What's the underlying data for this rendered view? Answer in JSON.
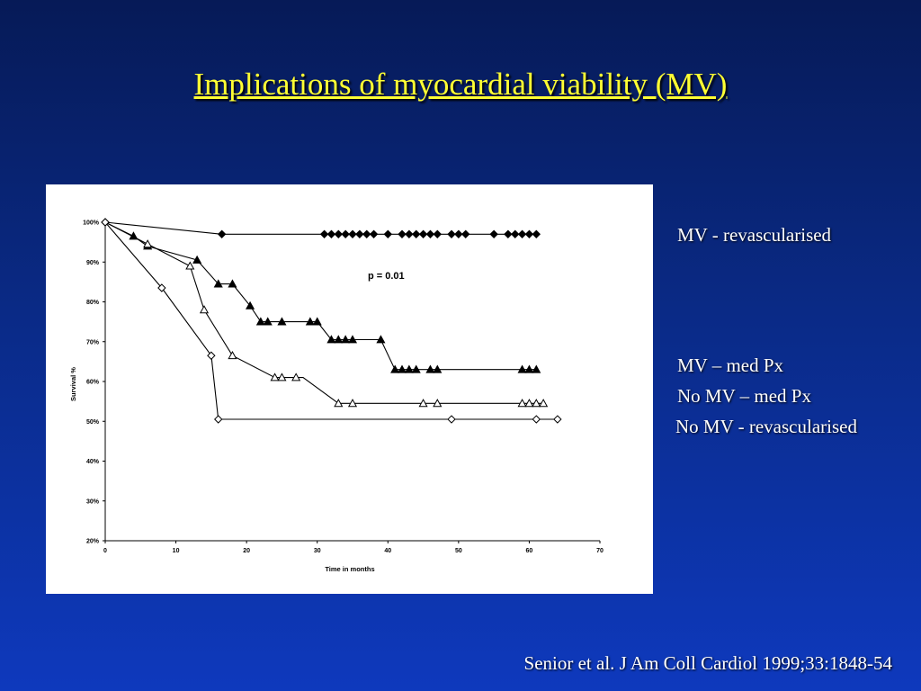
{
  "slide": {
    "title": "Implications of  myocardial viability (MV)",
    "citation": "Senior et al. J Am Coll Cardiol 1999;33:1848-54"
  },
  "labels": {
    "mv_revasc": "MV - revascularised",
    "mv_med": "MV – med Px",
    "nomv_med": "No MV – med Px",
    "nomv_revasc": "No MV - revascularised"
  },
  "colors": {
    "title": "#ffff33",
    "text": "#ffffff",
    "chart_bg": "#ffffff",
    "series": "#000000"
  },
  "chart_data": {
    "type": "line",
    "xlabel": "Time in months",
    "ylabel": "Survival %",
    "xlim": [
      0,
      70
    ],
    "ylim": [
      20,
      100
    ],
    "x_ticks": [
      "0",
      "10",
      "20",
      "30",
      "40",
      "50",
      "60",
      "70"
    ],
    "y_ticks": [
      "20%",
      "30%",
      "40%",
      "50%",
      "60%",
      "70%",
      "80%",
      "90%",
      "100%"
    ],
    "annotation": "p = 0.01",
    "series": [
      {
        "name": "MV - revascularised",
        "marker": "diamond-filled",
        "steps": [
          [
            0,
            100
          ],
          [
            16.5,
            97
          ],
          [
            61,
            97
          ]
        ],
        "markers": [
          [
            0,
            100
          ],
          [
            16.5,
            97
          ],
          [
            31,
            97
          ],
          [
            32,
            97
          ],
          [
            33,
            97
          ],
          [
            34,
            97
          ],
          [
            35,
            97
          ],
          [
            36,
            97
          ],
          [
            37,
            97
          ],
          [
            38,
            97
          ],
          [
            40,
            97
          ],
          [
            42,
            97
          ],
          [
            43,
            97
          ],
          [
            44,
            97
          ],
          [
            45,
            97
          ],
          [
            46,
            97
          ],
          [
            47,
            97
          ],
          [
            49,
            97
          ],
          [
            50,
            97
          ],
          [
            51,
            97
          ],
          [
            55,
            97
          ],
          [
            57,
            97
          ],
          [
            58,
            97
          ],
          [
            59,
            97
          ],
          [
            60,
            97
          ],
          [
            61,
            97
          ]
        ]
      },
      {
        "name": "MV – med Px",
        "marker": "triangle-filled",
        "steps": [
          [
            0,
            100
          ],
          [
            4,
            96.5
          ],
          [
            6,
            94
          ],
          [
            13,
            90.5
          ],
          [
            16,
            84.5
          ],
          [
            18,
            84.5
          ],
          [
            20.5,
            79
          ],
          [
            22,
            75
          ],
          [
            30,
            75
          ],
          [
            32,
            70.5
          ],
          [
            39,
            70.5
          ],
          [
            41,
            63
          ],
          [
            61,
            63
          ]
        ],
        "markers": [
          [
            4,
            96.5
          ],
          [
            6,
            94
          ],
          [
            13,
            90.5
          ],
          [
            16,
            84.5
          ],
          [
            18,
            84.5
          ],
          [
            20.5,
            79
          ],
          [
            22,
            75
          ],
          [
            23,
            75
          ],
          [
            25,
            75
          ],
          [
            29,
            75
          ],
          [
            30,
            75
          ],
          [
            32,
            70.5
          ],
          [
            33,
            70.5
          ],
          [
            34,
            70.5
          ],
          [
            35,
            70.5
          ],
          [
            39,
            70.5
          ],
          [
            41,
            63
          ],
          [
            42,
            63
          ],
          [
            43,
            63
          ],
          [
            44,
            63
          ],
          [
            46,
            63
          ],
          [
            47,
            63
          ],
          [
            59,
            63
          ],
          [
            60,
            63
          ],
          [
            61,
            63
          ]
        ]
      },
      {
        "name": "No MV – med Px",
        "marker": "triangle-open",
        "steps": [
          [
            0,
            100
          ],
          [
            6,
            94.5
          ],
          [
            12,
            89
          ],
          [
            14,
            78
          ],
          [
            18,
            66.5
          ],
          [
            24,
            61
          ],
          [
            28,
            61
          ],
          [
            33,
            54.5
          ],
          [
            62,
            54.5
          ]
        ],
        "markers": [
          [
            6,
            94.5
          ],
          [
            12,
            89
          ],
          [
            14,
            78
          ],
          [
            18,
            66.5
          ],
          [
            24,
            61
          ],
          [
            25,
            61
          ],
          [
            27,
            61
          ],
          [
            33,
            54.5
          ],
          [
            35,
            54.5
          ],
          [
            45,
            54.5
          ],
          [
            47,
            54.5
          ],
          [
            59,
            54.5
          ],
          [
            60,
            54.5
          ],
          [
            61,
            54.5
          ],
          [
            62,
            54.5
          ]
        ]
      },
      {
        "name": "No MV - revascularised",
        "marker": "diamond-open",
        "steps": [
          [
            0,
            100
          ],
          [
            8,
            83.5
          ],
          [
            15,
            66.5
          ],
          [
            16,
            50.5
          ],
          [
            64,
            50.5
          ]
        ],
        "markers": [
          [
            0,
            100
          ],
          [
            8,
            83.5
          ],
          [
            15,
            66.5
          ],
          [
            16,
            50.5
          ],
          [
            49,
            50.5
          ],
          [
            61,
            50.5
          ],
          [
            64,
            50.5
          ]
        ]
      }
    ]
  }
}
